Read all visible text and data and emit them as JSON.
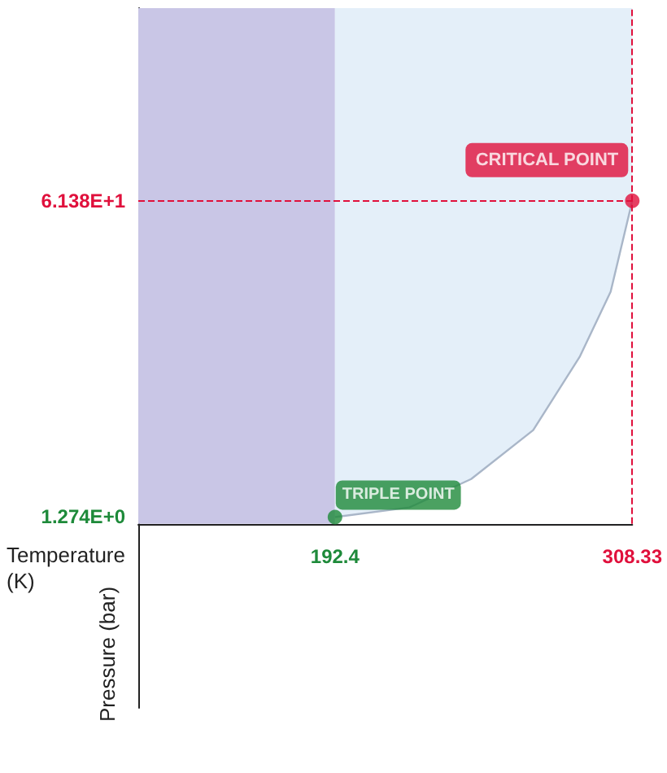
{
  "chart_data": {
    "type": "area",
    "xlabel": "Temperature (K)",
    "ylabel": "Pressure (bar)",
    "xlim": [
      115.7,
      308.33
    ],
    "ylim": [
      -35,
      98
    ],
    "xticks": [
      {
        "value": 192.4,
        "label": "192.4"
      },
      {
        "value": 308.33,
        "label": "308.33"
      }
    ],
    "yticks": [
      {
        "value": 1.274,
        "label": "1.274E+0"
      },
      {
        "value": 61.38,
        "label": "6.138E+1"
      }
    ],
    "series": [
      {
        "color": "#a9b6c8",
        "x": [
          192.4,
          221.4,
          245.5,
          269.7,
          287.8,
          299.9,
          308.33
        ],
        "values": [
          1.274,
          3.1,
          8.5,
          17.8,
          31.7,
          44.1,
          61.38
        ]
      },
      {
        "type": "scatter",
        "marker": "circle",
        "color": "#1e8a3a",
        "x": [
          192.4
        ],
        "values": [
          1.274
        ]
      },
      {
        "type": "scatter",
        "marker": "circle",
        "color": "#e0103c",
        "x": [
          308.33
        ],
        "values": [
          61.38
        ]
      }
    ],
    "bands": [
      {
        "axis": "x",
        "from": 115.7,
        "to": 192.4,
        "color": "#c9c6e6"
      },
      {
        "axis": "x",
        "from": 192.4,
        "to": 308.33,
        "color": "#e4eff9"
      }
    ],
    "ref_lines": [
      {
        "axis": "y",
        "value": 61.38,
        "color": "#e0103c",
        "line_style": "dashed"
      },
      {
        "axis": "x",
        "value": 308.33,
        "color": "#e0103c",
        "line_style": "dashed"
      }
    ],
    "annotations": [
      {
        "text": "CRITICAL POINT",
        "x": 308.33,
        "y": 61.38
      },
      {
        "text": "TRIPLE POINT",
        "x": 192.4,
        "y": 1.274
      }
    ],
    "grid": false
  }
}
